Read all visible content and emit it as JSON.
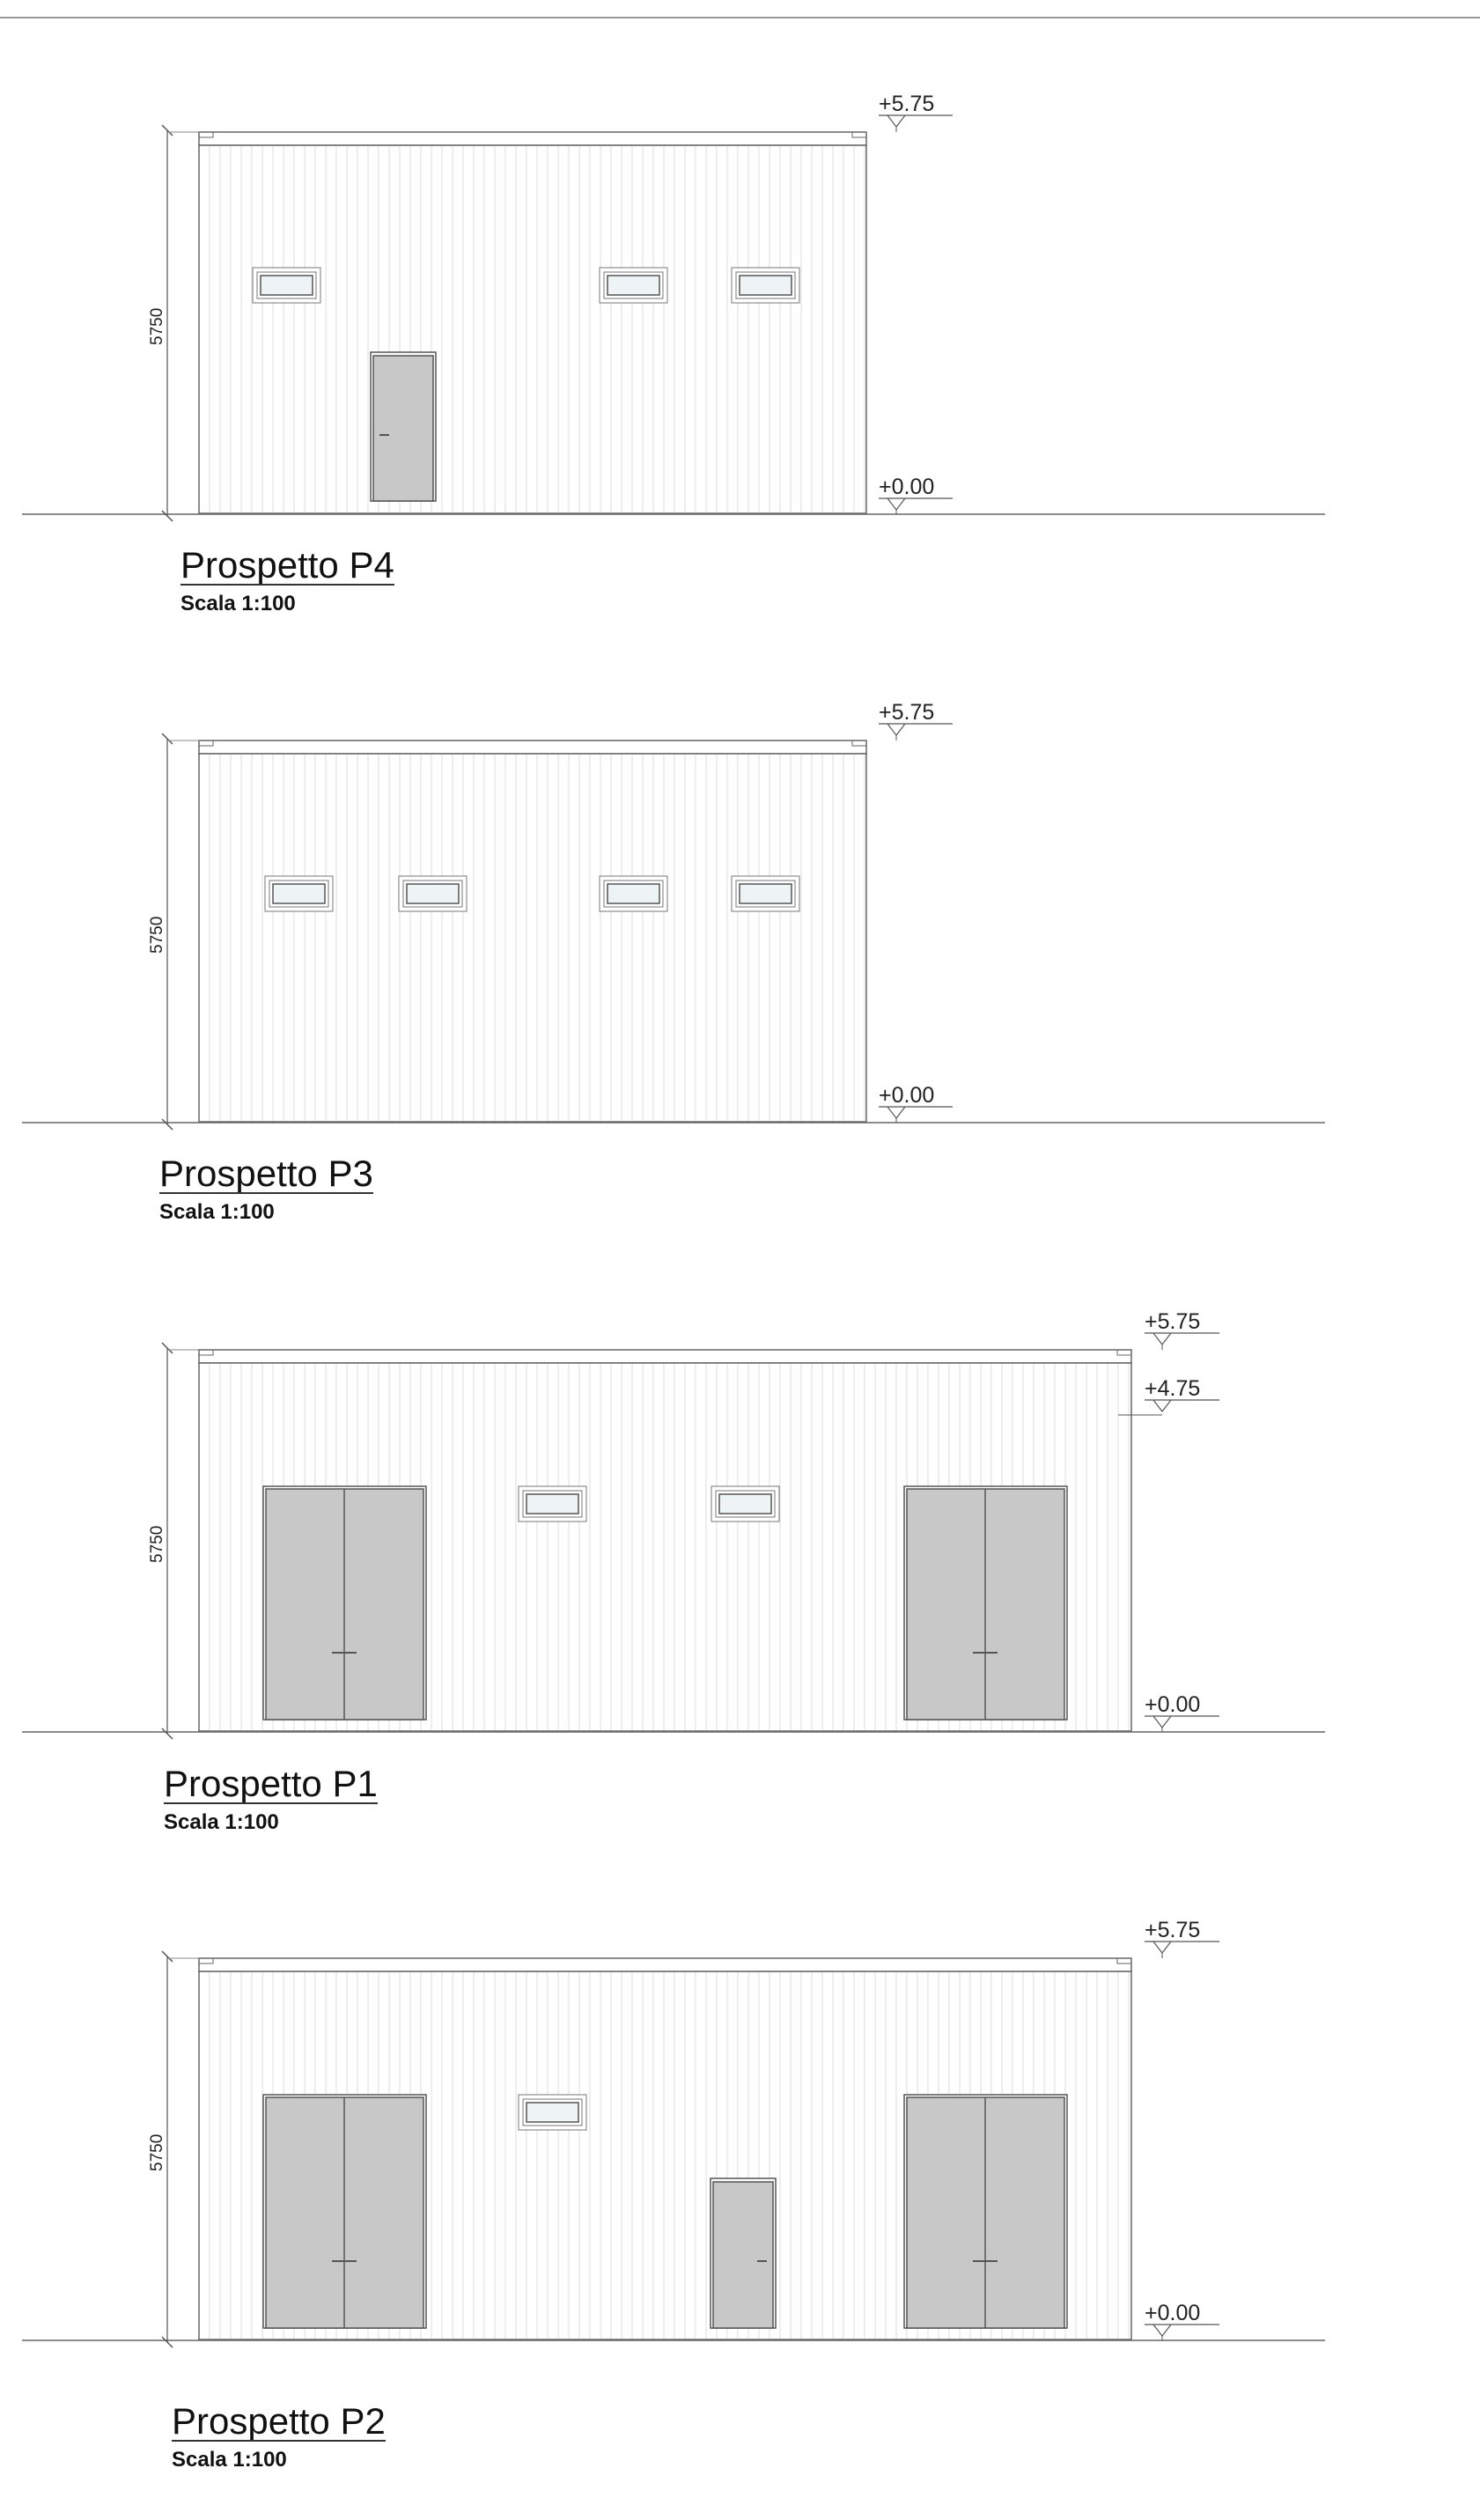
{
  "sheet": {
    "elevations": [
      {
        "title": "Prospetto P4",
        "scale": "Scala 1:100",
        "dimension": "5750",
        "levels": [
          "+5.75",
          "+0.00"
        ],
        "windows": 3,
        "single_doors": 1,
        "double_doors": 0
      },
      {
        "title": "Prospetto P3",
        "scale": "Scala 1:100",
        "dimension": "5750",
        "levels": [
          "+5.75",
          "+0.00"
        ],
        "windows": 4,
        "single_doors": 0,
        "double_doors": 0
      },
      {
        "title": "Prospetto P1",
        "scale": "Scala 1:100",
        "dimension": "5750",
        "levels": [
          "+5.75",
          "+4.75",
          "+0.00"
        ],
        "windows": 2,
        "single_doors": 0,
        "double_doors": 2
      },
      {
        "title": "Prospetto P2",
        "scale": "Scala 1:100",
        "dimension": "5750",
        "levels": [
          "+5.75",
          "+0.00"
        ],
        "windows": 1,
        "single_doors": 1,
        "double_doors": 2
      }
    ],
    "colors": {
      "line": "#555555",
      "cladding": "#dddddd",
      "door_fill": "#c8c8c8",
      "glass": "#eef3f6"
    }
  }
}
